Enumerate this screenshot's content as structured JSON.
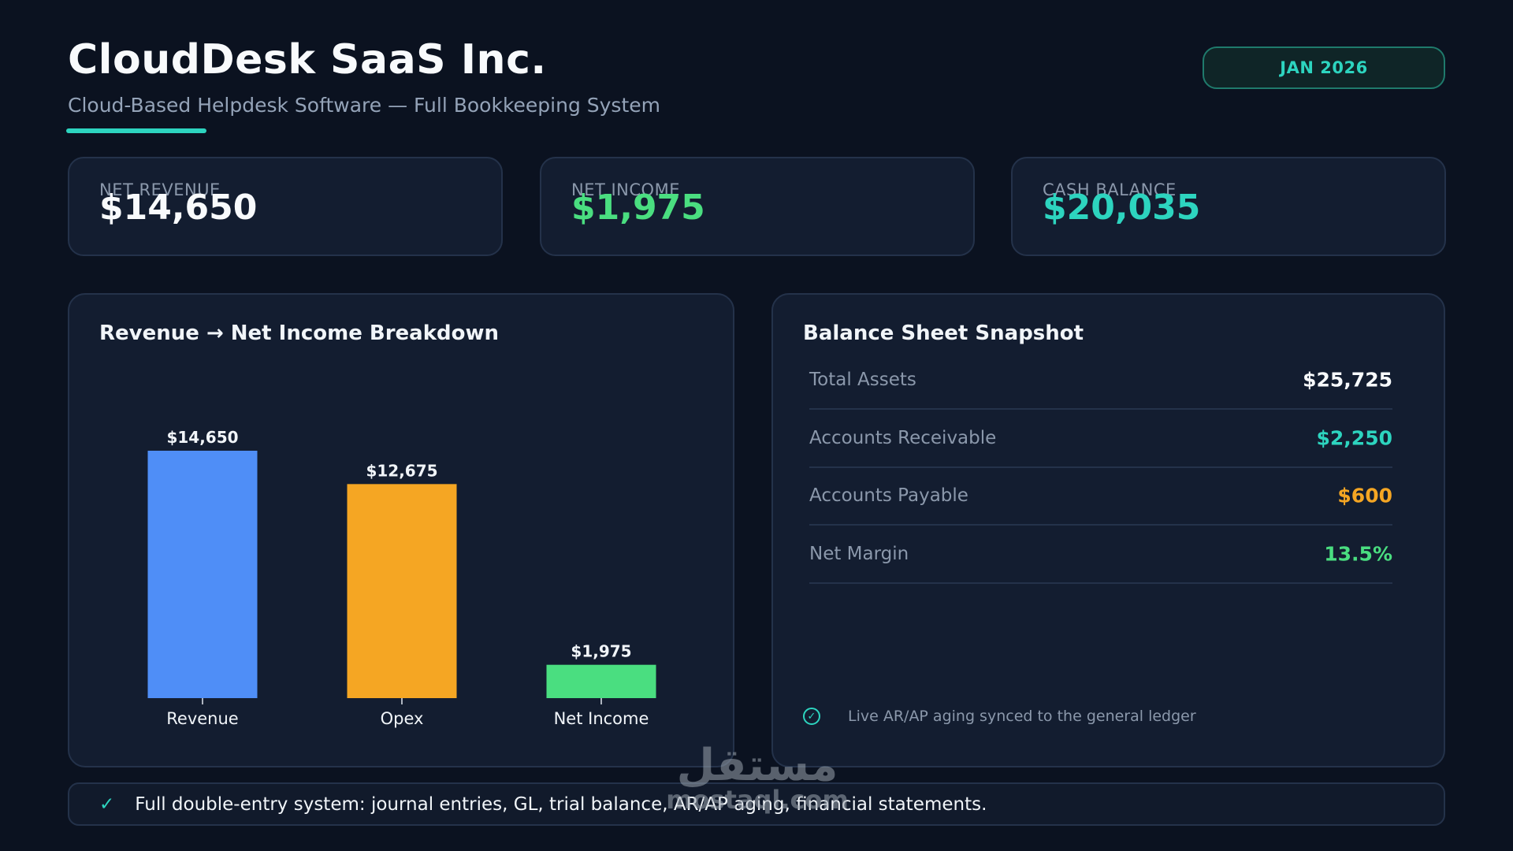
{
  "header": {
    "company": "CloudDesk SaaS Inc.",
    "subtitle": "Cloud-Based Helpdesk Software — Full Bookkeeping System",
    "period": "JAN 2026"
  },
  "colors": {
    "background": "#0b1220",
    "card": "#131d30",
    "accent_teal": "#2dd4bf",
    "green": "#4ade80",
    "blue": "#4f8ef7",
    "orange": "#f5a623",
    "muted": "#8b98ab"
  },
  "kpis": [
    {
      "label": "NET REVENUE",
      "value": "$14,650",
      "color": "#f8fafc"
    },
    {
      "label": "NET INCOME",
      "value": "$1,975",
      "color": "#4ade80"
    },
    {
      "label": "CASH BALANCE",
      "value": "$20,035",
      "color": "#2dd4bf"
    }
  ],
  "breakdown_panel": {
    "title": "Revenue → Net Income Breakdown"
  },
  "chart_data": {
    "type": "bar",
    "title": "Revenue → Net Income Breakdown",
    "categories": [
      "Revenue",
      "Opex",
      "Net Income"
    ],
    "values": [
      14650,
      12675,
      1975
    ],
    "value_labels": [
      "$14,650",
      "$12,675",
      "$1,975"
    ],
    "colors": [
      "#4f8ef7",
      "#f5a623",
      "#4ade80"
    ],
    "xlabel": "",
    "ylabel": "",
    "ylim": [
      0,
      14650
    ],
    "grid": false,
    "legend": "none"
  },
  "balance_sheet": {
    "title": "Balance Sheet Snapshot",
    "rows": [
      {
        "label": "Total Assets",
        "value": "$25,725",
        "color": "#f8fafc"
      },
      {
        "label": "Accounts Receivable",
        "value": "$2,250",
        "color": "#2dd4bf"
      },
      {
        "label": "Accounts Payable",
        "value": "$600",
        "color": "#f5a623"
      },
      {
        "label": "Net Margin",
        "value": "13.5%",
        "color": "#4ade80"
      }
    ],
    "sync_icon": "check-circle-icon",
    "sync_note": "Live AR/AP aging synced to the general ledger"
  },
  "footer": {
    "icon": "check-icon",
    "check_glyph": "✓",
    "text": "Full double-entry system: journal entries, GL, trial balance, AR/AP aging, financial statements."
  },
  "watermark": {
    "arabic": "مستقل",
    "latin": "mostaql.com"
  }
}
